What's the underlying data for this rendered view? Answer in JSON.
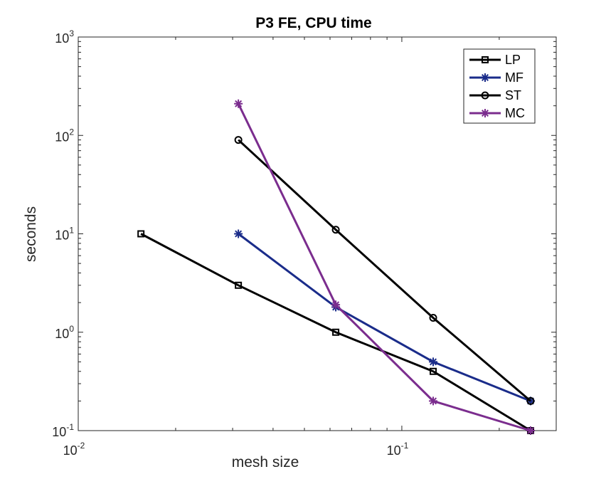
{
  "chart_data": {
    "type": "line",
    "title": "P3 FE, CPU time",
    "xlabel": "mesh size",
    "ylabel": "seconds",
    "xscale": "log",
    "yscale": "log",
    "xlim": [
      0.01,
      0.3
    ],
    "ylim": [
      0.1,
      1000
    ],
    "x_ticks": [
      {
        "base": "10",
        "exp": "-2",
        "value": 0.01
      },
      {
        "base": "10",
        "exp": "-1",
        "value": 0.1
      }
    ],
    "y_ticks": [
      {
        "base": "10",
        "exp": "-1",
        "value": 0.1
      },
      {
        "base": "10",
        "exp": "0",
        "value": 1
      },
      {
        "base": "10",
        "exp": "1",
        "value": 10
      },
      {
        "base": "10",
        "exp": "2",
        "value": 100
      },
      {
        "base": "10",
        "exp": "3",
        "value": 1000
      }
    ],
    "legend_position": "top-right",
    "grid": false,
    "series": [
      {
        "name": "LP",
        "color": "#000000",
        "marker": "square",
        "x": [
          0.015625,
          0.03125,
          0.0625,
          0.125,
          0.25
        ],
        "y": [
          10,
          3,
          1,
          0.4,
          0.1
        ]
      },
      {
        "name": "MF",
        "color": "#1a2c8a",
        "marker": "asterisk",
        "x": [
          0.03125,
          0.0625,
          0.125,
          0.25
        ],
        "y": [
          10,
          1.8,
          0.5,
          0.2
        ]
      },
      {
        "name": "ST",
        "color": "#000000",
        "marker": "circle",
        "x": [
          0.03125,
          0.0625,
          0.125,
          0.25
        ],
        "y": [
          90,
          11,
          1.4,
          0.2
        ]
      },
      {
        "name": "MC",
        "color": "#7b2d8e",
        "marker": "asterisk",
        "x": [
          0.03125,
          0.0625,
          0.125,
          0.25
        ],
        "y": [
          210,
          1.9,
          0.2,
          0.1
        ]
      }
    ]
  }
}
